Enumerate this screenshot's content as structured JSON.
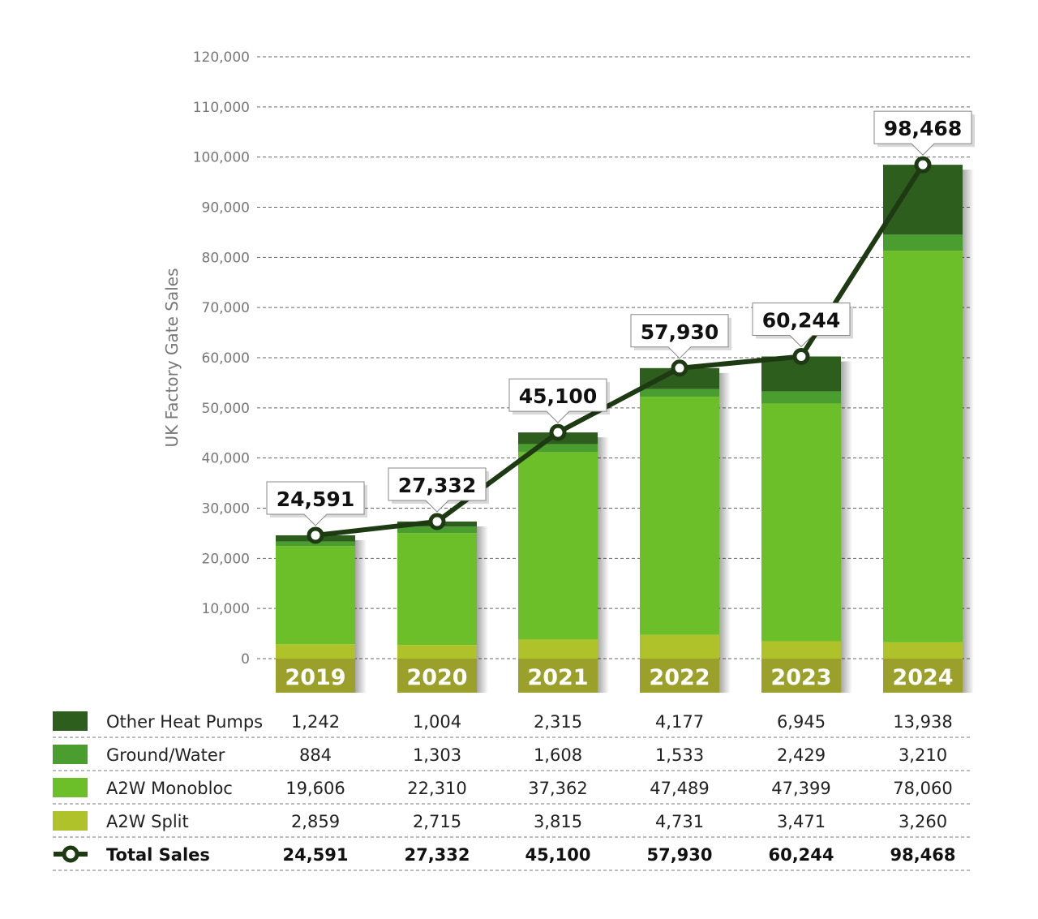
{
  "chart_data": {
    "type": "bar",
    "stacked": true,
    "title": "",
    "xlabel": "",
    "ylabel": "UK Factory Gate Sales",
    "ylim": [
      0,
      120000
    ],
    "yticks": [
      "0",
      "10,000",
      "20,000",
      "30,000",
      "40,000",
      "50,000",
      "60,000",
      "70,000",
      "80,000",
      "90,000",
      "100,000",
      "110,000",
      "120,000"
    ],
    "grid": true,
    "categories": [
      "2019",
      "2020",
      "2021",
      "2022",
      "2023",
      "2024"
    ],
    "series": [
      {
        "name": "A2W Split",
        "color": "#b0c22a",
        "values": [
          2859,
          2715,
          3815,
          4731,
          3471,
          3260
        ],
        "labels": [
          "2,859",
          "2,715",
          "3,815",
          "4,731",
          "3,471",
          "3,260"
        ]
      },
      {
        "name": "A2W Monobloc",
        "color": "#6cbf28",
        "values": [
          19606,
          22310,
          37362,
          47489,
          47399,
          78060
        ],
        "labels": [
          "19,606",
          "22,310",
          "37,362",
          "47,489",
          "47,399",
          "78,060"
        ]
      },
      {
        "name": "Ground/Water",
        "color": "#4a9e2f",
        "values": [
          884,
          1303,
          1608,
          1533,
          2429,
          3210
        ],
        "labels": [
          "884",
          "1,303",
          "1,608",
          "1,533",
          "2,429",
          "3,210"
        ]
      },
      {
        "name": "Other Heat Pumps",
        "color": "#2d5e1e",
        "values": [
          1242,
          1004,
          2315,
          4177,
          6945,
          13938
        ],
        "labels": [
          "1,242",
          "1,004",
          "2,315",
          "4,177",
          "6,945",
          "13,938"
        ]
      }
    ],
    "total": {
      "name": "Total Sales",
      "type": "line",
      "color": "#1e3a12",
      "values": [
        24591,
        27332,
        45100,
        57930,
        60244,
        98468
      ],
      "labels": [
        "24,591",
        "27,332",
        "45,100",
        "57,930",
        "60,244",
        "98,468"
      ]
    },
    "table_order": [
      "Other Heat Pumps",
      "Ground/Water",
      "A2W Monobloc",
      "A2W Split"
    ],
    "year_box_color": "#9aa02a"
  }
}
